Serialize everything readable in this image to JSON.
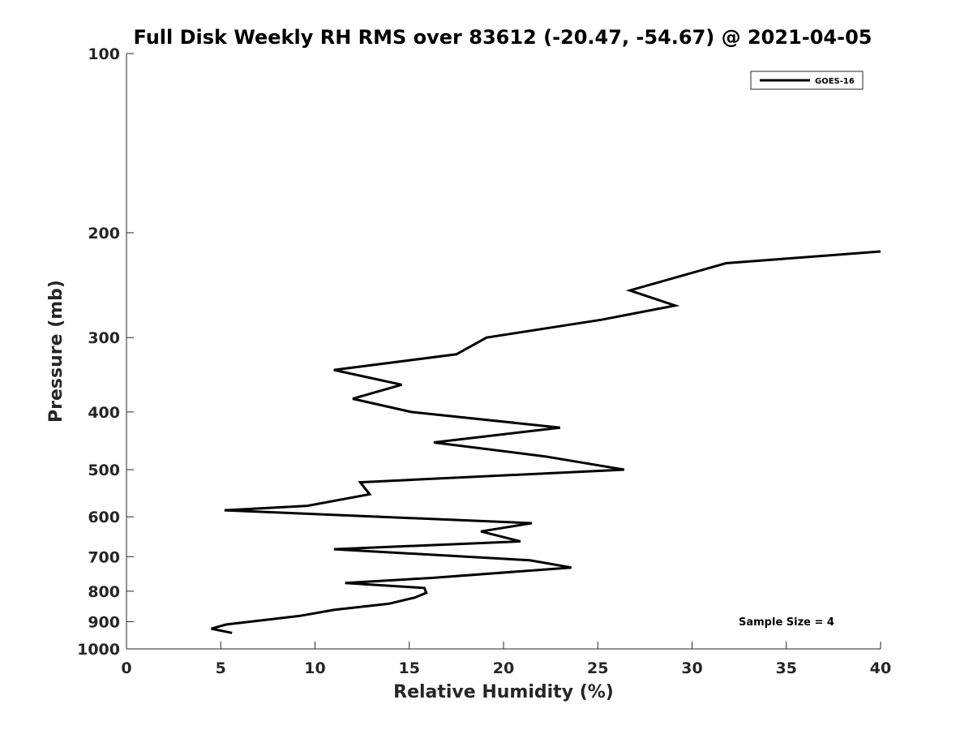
{
  "chart_data": {
    "type": "line",
    "title": "Full Disk Weekly RH RMS over 83612 (-20.47, -54.67) @ 2021-04-05",
    "xlabel": "Relative Humidity (%)",
    "ylabel": "Pressure (mb)",
    "xlim": [
      0,
      40
    ],
    "ylim": [
      100,
      1000
    ],
    "yscale": "log",
    "yreversed": true,
    "grid": false,
    "legend_position": "top-right",
    "xticks": [
      0,
      5,
      10,
      15,
      20,
      25,
      30,
      35,
      40
    ],
    "xtick_labels": [
      "0",
      "5",
      "10",
      "15",
      "20",
      "25",
      "30",
      "35",
      "40"
    ],
    "yticks": [
      100,
      200,
      300,
      400,
      500,
      600,
      700,
      800,
      900,
      1000
    ],
    "ytick_labels": [
      "100",
      "200",
      "300",
      "400",
      "500",
      "600",
      "700",
      "800",
      "900",
      "1000"
    ],
    "annotation": "Sample Size = 4",
    "series": [
      {
        "name": "GOES-16",
        "color": "#000000",
        "x": [
          40.0,
          31.8,
          26.7,
          29.1,
          25.2,
          19.1,
          17.5,
          11.0,
          14.6,
          12.0,
          15.1,
          23.0,
          16.3,
          22.2,
          26.4,
          12.4,
          12.9,
          9.6,
          5.2,
          21.5,
          18.8,
          20.9,
          11.0,
          21.4,
          23.6,
          16.2,
          11.6,
          15.8,
          15.9,
          15.3,
          13.9,
          11.0,
          9.2,
          5.3,
          4.5,
          5.6
        ],
        "y": [
          215,
          225,
          250,
          265,
          280,
          300,
          320,
          340,
          360,
          380,
          400,
          425,
          450,
          475,
          500,
          525,
          550,
          575,
          585,
          615,
          635,
          660,
          680,
          710,
          730,
          760,
          775,
          790,
          805,
          820,
          840,
          860,
          880,
          910,
          925,
          940
        ]
      }
    ]
  }
}
